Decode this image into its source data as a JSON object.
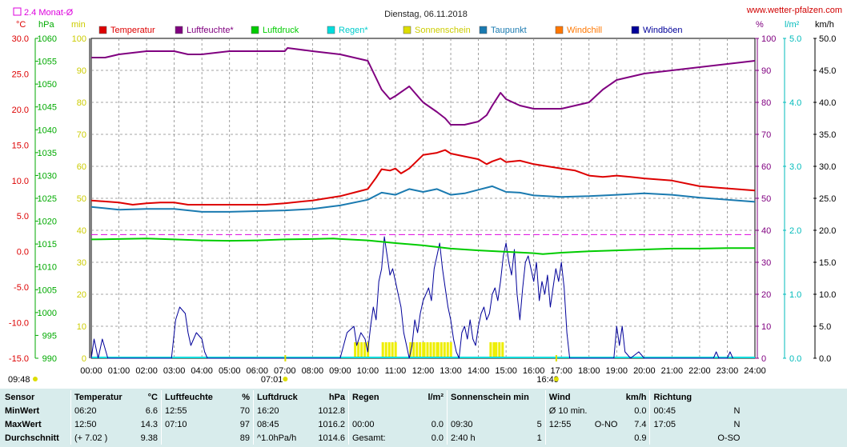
{
  "header": {
    "title": "Dienstag, 06.11.2018",
    "site": "www.wetter-pfalzen.com",
    "avg_label": "2.4 Monat-Ø",
    "unit_c": "°C",
    "unit_hpa": "hPa",
    "unit_min": "min",
    "unit_pct": "%",
    "unit_lm2": "l/m²",
    "unit_kmh": "km/h"
  },
  "legend": [
    {
      "label": "Temperatur",
      "color": "#dd0000"
    },
    {
      "label": "Luftfeuchte*",
      "color": "#800080"
    },
    {
      "label": "Luftdruck",
      "color": "#00cc00"
    },
    {
      "label": "Regen*",
      "color": "#00dddd"
    },
    {
      "label": "Sonnenschein",
      "color": "#dddd00"
    },
    {
      "label": "Taupunkt",
      "color": "#1a7ab0"
    },
    {
      "label": "Windchill",
      "color": "#ff7700"
    },
    {
      "label": "Windböen",
      "color": "#000099"
    }
  ],
  "axes": {
    "temp_ticks": [
      "30.0",
      "25.0",
      "20.0",
      "15.0",
      "10.0",
      "5.0",
      "0.0",
      "-5.0",
      "-10.0",
      "-15.0"
    ],
    "hpa_ticks": [
      "1060",
      "1055",
      "1050",
      "1045",
      "1040",
      "1035",
      "1030",
      "1025",
      "1020",
      "1015",
      "1010",
      "1005",
      "1000",
      "995",
      "990"
    ],
    "min_ticks": [
      "100",
      "90",
      "80",
      "70",
      "60",
      "50",
      "40",
      "30",
      "20",
      "10",
      "0"
    ],
    "pct_ticks": [
      "100",
      "90",
      "80",
      "70",
      "60",
      "50",
      "40",
      "30",
      "20",
      "10",
      "0"
    ],
    "lm2_ticks": [
      "5.0",
      "4.0",
      "3.0",
      "2.0",
      "1.0",
      "0.0"
    ],
    "kmh_ticks": [
      "50.0",
      "45.0",
      "40.0",
      "35.0",
      "30.0",
      "25.0",
      "20.0",
      "15.0",
      "10.0",
      "5.0",
      "0.0"
    ],
    "x_ticks": [
      "00:00",
      "01:00",
      "02:00",
      "03:00",
      "04:00",
      "05:00",
      "06:00",
      "07:00",
      "08:00",
      "09:00",
      "10:00",
      "11:00",
      "12:00",
      "13:00",
      "14:00",
      "15:00",
      "16:00",
      "17:00",
      "18:00",
      "19:00",
      "20:00",
      "21:00",
      "22:00",
      "23:00",
      "24:00"
    ],
    "sunrise": "07:01",
    "sunset": "16:49",
    "daylength": "09:48"
  },
  "chart_data": {
    "type": "line",
    "title": "Dienstag, 06.11.2018",
    "x_range": [
      "00:00",
      "24:00"
    ],
    "grid": true,
    "legend_position": "top",
    "temp_ylim": [
      -15,
      30
    ],
    "hpa_ylim": [
      990,
      1060
    ],
    "pct_ylim": [
      0,
      100
    ],
    "kmh_ylim": [
      0,
      50
    ],
    "monthly_avg_temp": 2.4,
    "series": [
      {
        "name": "Temperatur",
        "unit": "°C",
        "x": [
          0,
          1,
          1.5,
          2,
          2.5,
          3,
          3.5,
          4,
          5,
          6,
          6.3,
          7,
          8,
          9,
          9.5,
          10,
          10.3,
          10.5,
          10.8,
          11,
          11.2,
          11.5,
          12,
          12.5,
          12.8,
          13,
          13.5,
          14,
          14.3,
          14.5,
          14.8,
          15,
          15.5,
          16,
          16.5,
          17,
          17.5,
          18,
          18.5,
          19,
          19.5,
          20,
          21,
          22,
          23,
          24
        ],
        "y": [
          7.2,
          6.9,
          6.6,
          6.8,
          6.9,
          6.9,
          6.6,
          6.6,
          6.6,
          6.6,
          6.6,
          6.8,
          7.2,
          7.8,
          8.3,
          8.8,
          10.4,
          11.6,
          11.4,
          11.7,
          11.0,
          11.7,
          13.6,
          13.9,
          14.3,
          13.8,
          13.4,
          13.0,
          12.3,
          12.7,
          13.1,
          12.6,
          12.8,
          12.3,
          12.0,
          11.7,
          11.4,
          10.7,
          10.5,
          10.7,
          10.5,
          10.3,
          10.0,
          9.2,
          8.9,
          8.6
        ]
      },
      {
        "name": "Luftfeuchte*",
        "unit": "%",
        "x": [
          0,
          0.5,
          1,
          2,
          3,
          3.5,
          4,
          5,
          6,
          7,
          7.1,
          8,
          9,
          9.5,
          10,
          10.5,
          10.8,
          11,
          11.5,
          12,
          12.5,
          12.8,
          13,
          13.5,
          14,
          14.3,
          14.5,
          14.8,
          15,
          15.5,
          16,
          16.5,
          17,
          17.5,
          18,
          18.5,
          19,
          19.5,
          20,
          21,
          22,
          23,
          24
        ],
        "y": [
          94,
          94,
          95,
          96,
          96,
          95,
          95,
          96,
          96,
          96,
          97,
          96,
          95,
          94,
          93,
          84,
          81,
          82,
          85,
          80,
          77,
          75,
          73,
          73,
          74,
          76,
          79,
          83,
          81,
          79,
          78,
          78,
          78,
          79,
          80,
          84,
          87,
          88,
          89,
          90,
          91,
          92,
          93
        ]
      },
      {
        "name": "Luftdruck",
        "unit": "hPa",
        "x": [
          0,
          1,
          2,
          3,
          4,
          5,
          6,
          7,
          8,
          8.75,
          9,
          10,
          11,
          12,
          13,
          14,
          15,
          16,
          16.33,
          17,
          18,
          19,
          20,
          21,
          22,
          23,
          24
        ],
        "y": [
          1016.0,
          1016.1,
          1016.2,
          1016.0,
          1015.8,
          1015.7,
          1015.8,
          1016.0,
          1016.1,
          1016.2,
          1016.1,
          1015.8,
          1015.2,
          1014.7,
          1014.0,
          1013.6,
          1013.3,
          1013.0,
          1012.8,
          1013.1,
          1013.4,
          1013.6,
          1013.8,
          1014.0,
          1014.0,
          1014.1,
          1014.1
        ]
      },
      {
        "name": "Taupunkt",
        "unit": "°C",
        "x": [
          0,
          1,
          2,
          3,
          4,
          5,
          6,
          7,
          8,
          9,
          10,
          10.5,
          11,
          11.5,
          12,
          12.5,
          13,
          13.5,
          14,
          14.5,
          15,
          15.5,
          16,
          17,
          18,
          19,
          20,
          21,
          22,
          23,
          24
        ],
        "y": [
          6.3,
          5.9,
          6.0,
          6.0,
          5.6,
          5.6,
          5.7,
          5.8,
          6.0,
          6.5,
          7.3,
          8.3,
          8.0,
          8.8,
          8.4,
          8.8,
          8.0,
          8.2,
          8.7,
          9.2,
          8.4,
          8.3,
          7.9,
          7.7,
          7.8,
          8.0,
          8.2,
          8.0,
          7.6,
          7.3,
          7.0
        ]
      },
      {
        "name": "Windböen",
        "unit": "km/h",
        "x": [
          0,
          0.1,
          0.25,
          0.4,
          0.6,
          2.9,
          3.05,
          3.2,
          3.4,
          3.5,
          3.6,
          3.8,
          4.0,
          4.1,
          4.2,
          9.0,
          9.25,
          9.5,
          9.6,
          9.75,
          9.9,
          10.0,
          10.1,
          10.2,
          10.3,
          10.4,
          10.5,
          10.6,
          10.7,
          10.8,
          10.9,
          11.0,
          11.1,
          11.2,
          11.3,
          11.4,
          11.5,
          11.6,
          11.7,
          11.8,
          11.9,
          12.0,
          12.1,
          12.2,
          12.3,
          12.4,
          12.5,
          12.6,
          12.7,
          12.8,
          12.9,
          13.0,
          13.1,
          13.2,
          13.3,
          13.4,
          13.5,
          13.6,
          13.7,
          13.8,
          13.9,
          14.0,
          14.1,
          14.2,
          14.3,
          14.4,
          14.5,
          14.6,
          14.7,
          14.8,
          14.9,
          15.0,
          15.1,
          15.2,
          15.3,
          15.4,
          15.5,
          15.6,
          15.7,
          15.8,
          15.9,
          16.0,
          16.1,
          16.2,
          16.3,
          16.4,
          16.5,
          16.6,
          16.7,
          16.8,
          16.9,
          17.0,
          17.1,
          17.2,
          17.3,
          17.5,
          18.9,
          19.0,
          19.1,
          19.2,
          19.3,
          19.5,
          19.8,
          20.0,
          22.5,
          22.6,
          22.7,
          23.0,
          23.1,
          23.2
        ],
        "y": [
          0,
          3,
          0,
          3,
          0,
          0,
          6,
          8,
          7,
          4,
          2,
          4,
          3,
          1,
          0,
          0,
          4,
          5,
          2,
          4,
          3,
          1,
          5,
          8,
          6,
          12,
          14,
          19,
          16,
          13,
          14,
          12,
          10,
          8,
          4,
          2,
          0,
          2,
          6,
          4,
          7,
          9,
          10,
          11,
          9,
          14,
          16,
          18,
          14,
          11,
          8,
          6,
          3,
          1,
          0,
          4,
          5,
          3,
          6,
          3,
          2,
          5,
          7,
          8,
          6,
          7,
          10,
          11,
          9,
          12,
          16,
          18,
          15,
          13,
          17,
          10,
          6,
          11,
          15,
          16,
          14,
          12,
          15,
          9,
          12,
          10,
          13,
          8,
          11,
          14,
          12,
          15,
          11,
          4,
          0,
          0,
          0,
          5,
          2,
          5,
          1,
          0,
          1,
          0,
          0,
          1,
          0,
          0,
          1,
          0
        ]
      },
      {
        "name": "Sonnenschein",
        "unit": "min",
        "x": [
          9.5,
          10.0,
          10.5,
          11.5,
          12.0,
          12.5,
          13.0,
          14.4,
          14.6
        ],
        "y": [
          5,
          0,
          5,
          5,
          5,
          5,
          0,
          5,
          5
        ]
      }
    ]
  },
  "stats": {
    "headers": [
      {
        "label": "Sensor",
        "unit": ""
      },
      {
        "label": "Temperatur",
        "unit": "°C"
      },
      {
        "label": "Luftfeuchte",
        "unit": "%"
      },
      {
        "label": "Luftdruck",
        "unit": "hPa"
      },
      {
        "label": "Regen",
        "unit": "l/m²"
      },
      {
        "label": "Sonnenschein min",
        "unit": ""
      },
      {
        "label": "Wind",
        "unit": "km/h"
      },
      {
        "label": "Richtung",
        "unit": ""
      }
    ],
    "rows": [
      {
        "label": "MinWert",
        "temp": [
          "06:20",
          "6.6"
        ],
        "hum": [
          "12:55",
          "70"
        ],
        "press": [
          "16:20",
          "1012.8"
        ],
        "rain": [
          "",
          ""
        ],
        "sun": [
          "",
          ""
        ],
        "wind": [
          "Ø 10 min.",
          "",
          "0.0"
        ],
        "dir": [
          "00:45",
          "N"
        ]
      },
      {
        "label": "MaxWert",
        "temp": [
          "12:50",
          "14.3"
        ],
        "hum": [
          "07:10",
          "97"
        ],
        "press": [
          "08:45",
          "1016.2"
        ],
        "rain": [
          "00:00",
          "0.0"
        ],
        "sun": [
          "09:30",
          "5"
        ],
        "wind": [
          "12:55",
          "O-NO",
          "7.4"
        ],
        "dir": [
          "17:05",
          "N"
        ]
      },
      {
        "label": "Durchschnitt",
        "temp": [
          "(+ 7.02 )",
          "9.38"
        ],
        "hum": [
          "",
          "89"
        ],
        "press": [
          "^1.0hPa/h",
          "1014.6"
        ],
        "rain": [
          "Gesamt:",
          "0.0"
        ],
        "sun": [
          "2:40 h",
          "1"
        ],
        "wind": [
          "",
          "",
          "0.9"
        ],
        "dir": [
          "",
          "O-SO"
        ]
      }
    ]
  }
}
